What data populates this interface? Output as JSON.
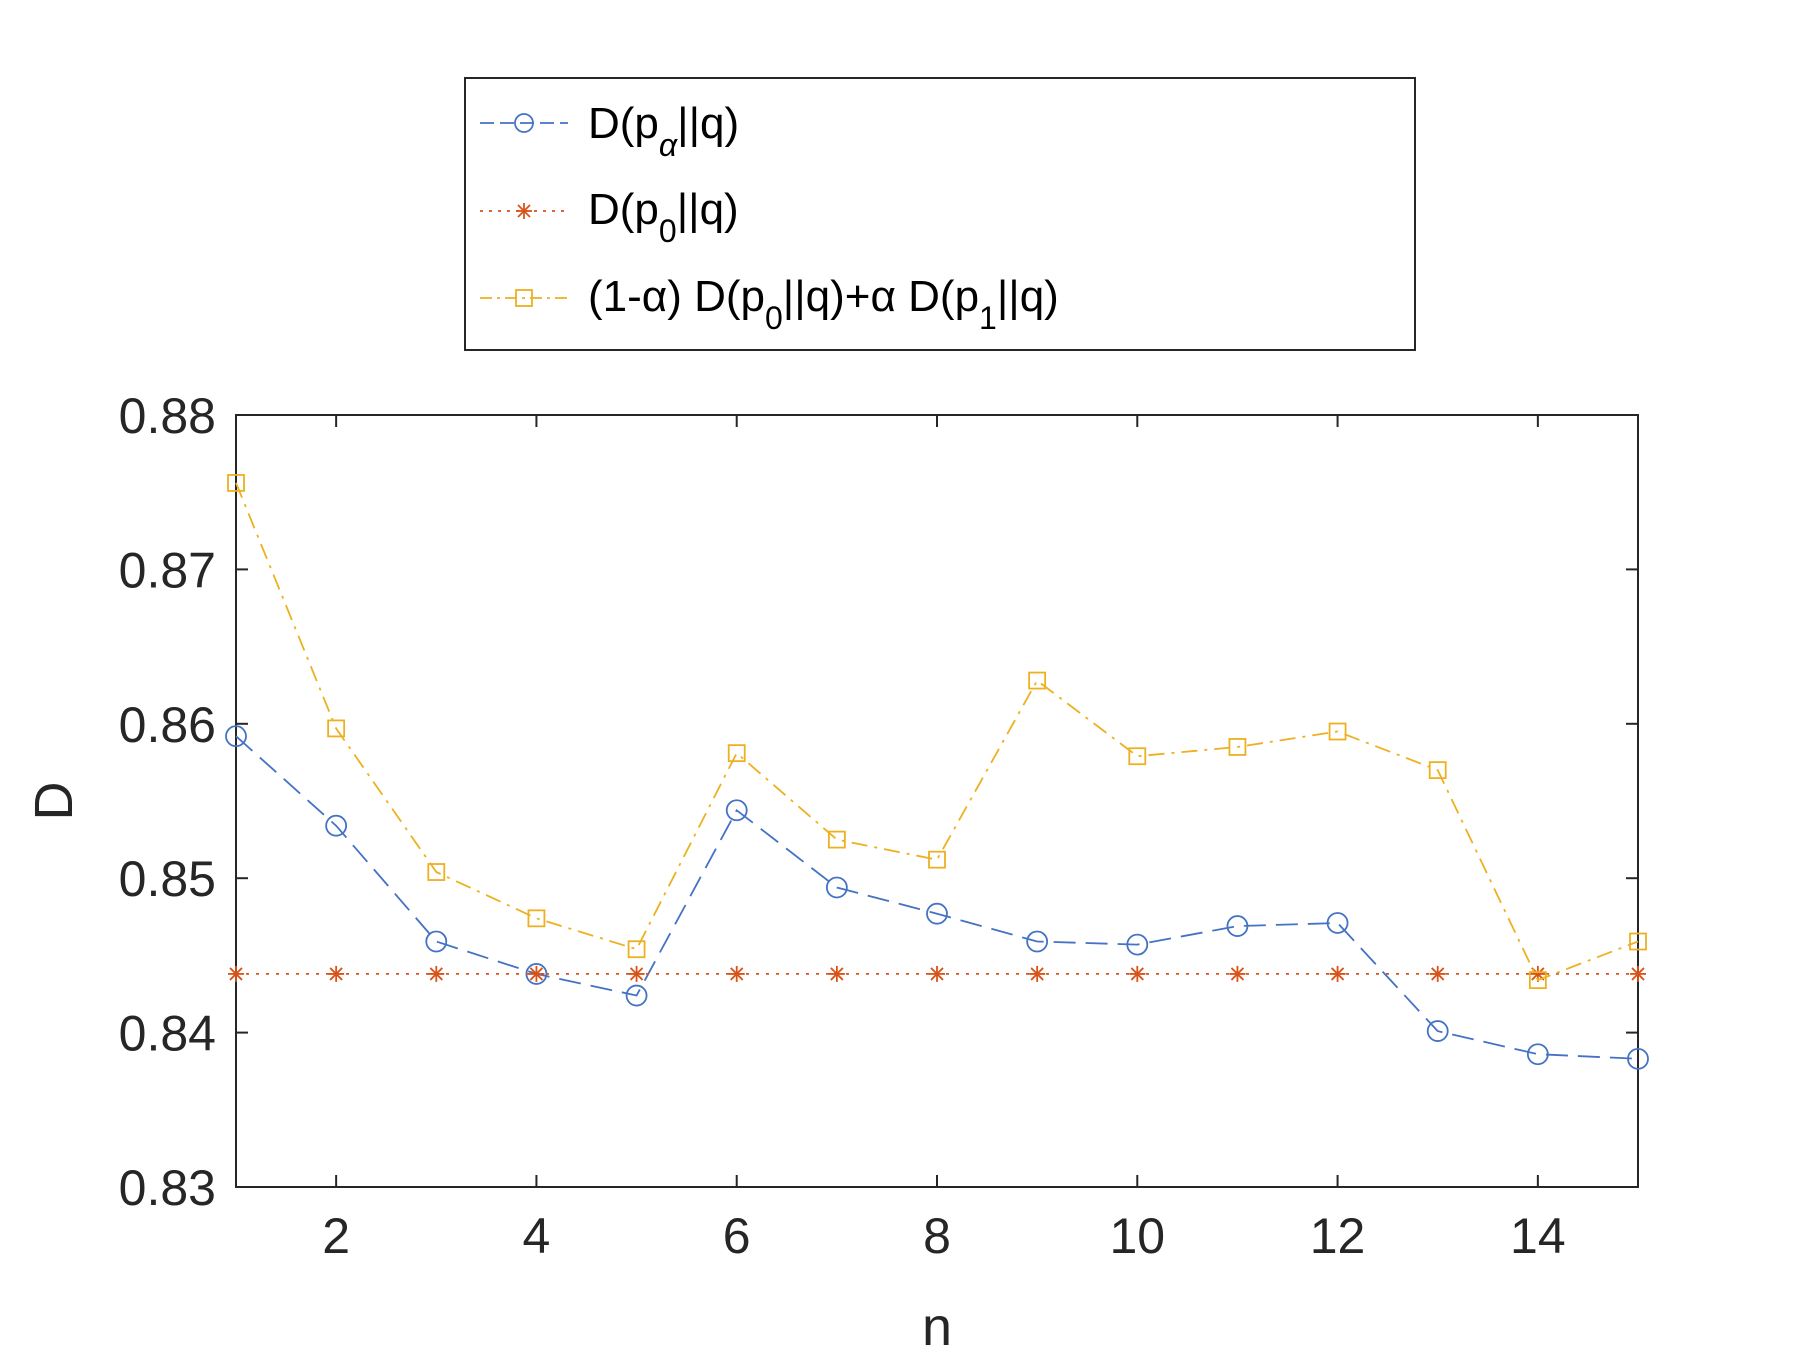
{
  "chart_data": {
    "type": "line",
    "xlabel": "n",
    "ylabel": "D",
    "xlim": [
      1,
      15
    ],
    "ylim": [
      0.83,
      0.88
    ],
    "x_ticks": [
      2,
      4,
      6,
      8,
      10,
      12,
      14
    ],
    "x_tick_labels": [
      "2",
      "4",
      "6",
      "8",
      "10",
      "12",
      "14"
    ],
    "y_ticks": [
      0.83,
      0.84,
      0.85,
      0.86,
      0.87,
      0.88
    ],
    "y_tick_labels": [
      "0.83",
      "0.84",
      "0.85",
      "0.86",
      "0.87",
      "0.88"
    ],
    "grid": false,
    "box": true,
    "legend_position": "top-center, outside above axes",
    "x": [
      1,
      2,
      3,
      4,
      5,
      6,
      7,
      8,
      9,
      10,
      11,
      12,
      13,
      14,
      15
    ],
    "series": [
      {
        "name": "D(pα||q)",
        "legend": {
          "pre": "D(p",
          "sub": "α",
          "post": "||q)"
        },
        "color": "#4472C4",
        "marker": "circle",
        "line_style": "dashed",
        "values": [
          0.8592,
          0.8534,
          0.8459,
          0.8438,
          0.8424,
          0.8544,
          0.8494,
          0.8477,
          0.8459,
          0.8457,
          0.8469,
          0.8471,
          0.8401,
          0.8386,
          0.8383
        ]
      },
      {
        "name": "D(p0||q)",
        "legend": {
          "pre": "D(p",
          "sub": "0",
          "post": "||q)"
        },
        "color": "#D95319",
        "marker": "asterisk",
        "line_style": "dotted",
        "values": [
          0.8438,
          0.8438,
          0.8438,
          0.8438,
          0.8438,
          0.8438,
          0.8438,
          0.8438,
          0.8438,
          0.8438,
          0.8438,
          0.8438,
          0.8438,
          0.8438,
          0.8438
        ]
      },
      {
        "name": "(1-α) D(p0||q)+α D(p1||q)",
        "legend": {
          "a": "(1-α) D(p",
          "b": "0",
          "c": "||q)+α D(p",
          "d": "1",
          "e": "||q)"
        },
        "color": "#EDB120",
        "marker": "square",
        "line_style": "dashdot",
        "values": [
          0.8756,
          0.8597,
          0.8504,
          0.8474,
          0.8454,
          0.8581,
          0.8525,
          0.8512,
          0.8628,
          0.8579,
          0.8585,
          0.8595,
          0.857,
          0.8434,
          0.8459
        ]
      }
    ]
  }
}
